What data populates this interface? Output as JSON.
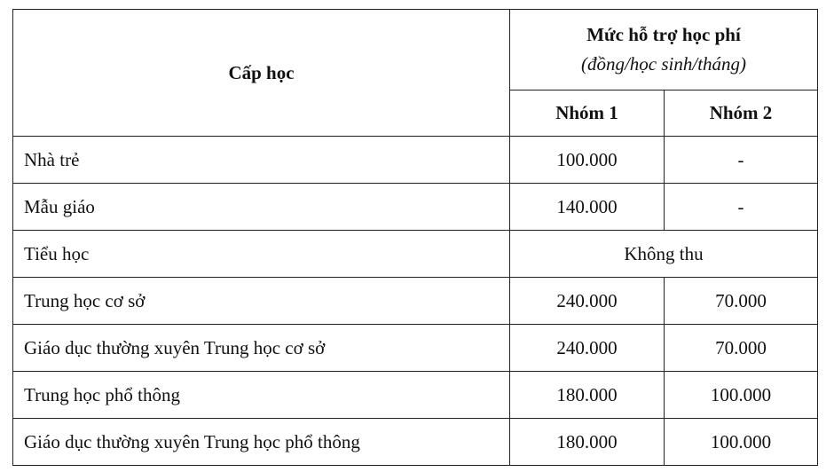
{
  "table": {
    "header": {
      "level_label": "Cấp học",
      "support_title": "Mức hỗ trợ học phí",
      "support_unit": "(đồng/học sinh/tháng)",
      "group1": "Nhóm 1",
      "group2": "Nhóm 2"
    },
    "rows": [
      {
        "level": "Nhà trẻ",
        "group1": "100.000",
        "group2": "-"
      },
      {
        "level": "Mẫu giáo",
        "group1": "140.000",
        "group2": "-"
      },
      {
        "level": "Tiểu học",
        "merged": "Không thu"
      },
      {
        "level": "Trung học cơ sở",
        "group1": "240.000",
        "group2": "70.000"
      },
      {
        "level": "Giáo dục thường xuyên Trung học cơ sở",
        "group1": "240.000",
        "group2": "70.000"
      },
      {
        "level": "Trung học phổ thông",
        "group1": "180.000",
        "group2": "100.000"
      },
      {
        "level": "Giáo dục thường xuyên Trung học phổ thông",
        "group1": "180.000",
        "group2": "100.000"
      }
    ]
  }
}
